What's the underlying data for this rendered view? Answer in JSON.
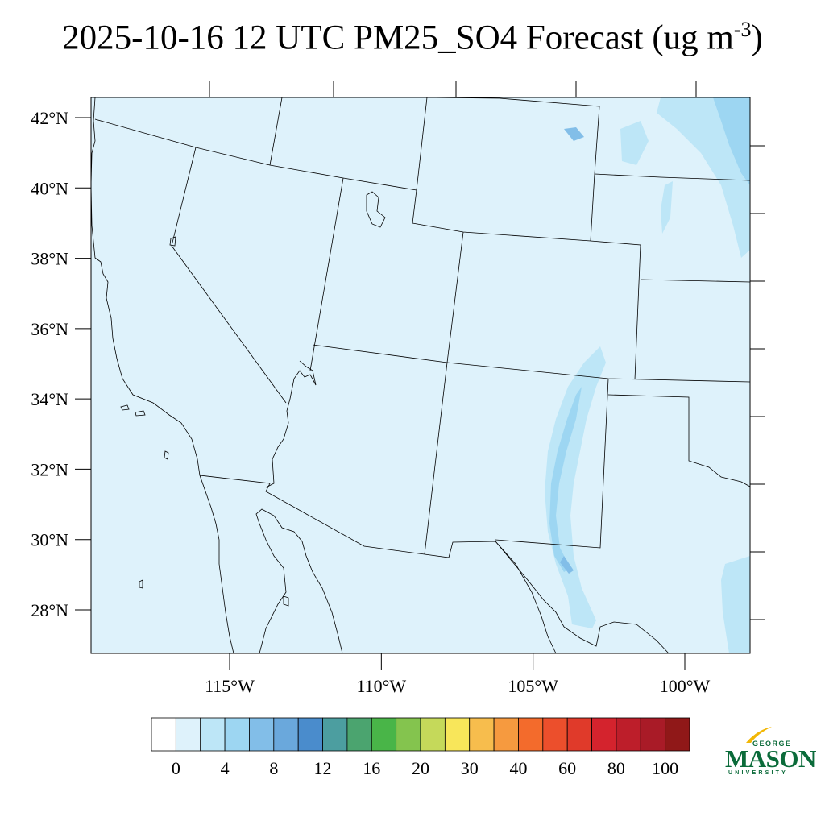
{
  "title": {
    "main": "2025-10-16 12 UTC PM25_SO4 Forecast (ug m",
    "superscript": "-3",
    "close": ")"
  },
  "map": {
    "lon_range": [
      -119.5,
      -97.6
    ],
    "lat_range": [
      26.8,
      42.6
    ],
    "background_color": "#def2fb",
    "lat_ticks": [
      {
        "value": 42,
        "label": "42°N"
      },
      {
        "value": 40,
        "label": "40°N"
      },
      {
        "value": 38,
        "label": "38°N"
      },
      {
        "value": 36,
        "label": "36°N"
      },
      {
        "value": 34,
        "label": "34°N"
      },
      {
        "value": 32,
        "label": "32°N"
      },
      {
        "value": 30,
        "label": "30°N"
      },
      {
        "value": 28,
        "label": "28°N"
      }
    ],
    "lon_ticks": [
      {
        "value": -115,
        "label": "115°W"
      },
      {
        "value": -110,
        "label": "110°W"
      },
      {
        "value": -105,
        "label": "105°W"
      },
      {
        "value": -100,
        "label": "100°W"
      }
    ]
  },
  "colorbar": {
    "colors": [
      "#ffffff",
      "#def2fb",
      "#bde6f7",
      "#9dd6f2",
      "#82bee8",
      "#6aa8dc",
      "#4a8ccc",
      "#4c9ea0",
      "#4ba46f",
      "#49b548",
      "#84c44e",
      "#c5d95a",
      "#f8e65a",
      "#f7bd4d",
      "#f69a3f",
      "#f36b2c",
      "#ec4f2c",
      "#e03a2a",
      "#d4232d",
      "#bd1e2a",
      "#a91b27",
      "#901818"
    ],
    "labels": [
      "0",
      "4",
      "8",
      "12",
      "16",
      "20",
      "30",
      "40",
      "60",
      "80",
      "100"
    ]
  },
  "logo": {
    "line1": "GEORGE",
    "line2": "MASON",
    "line3": "UNIVERSITY",
    "color": "#0b6b3a",
    "accent": "#f2b705"
  }
}
